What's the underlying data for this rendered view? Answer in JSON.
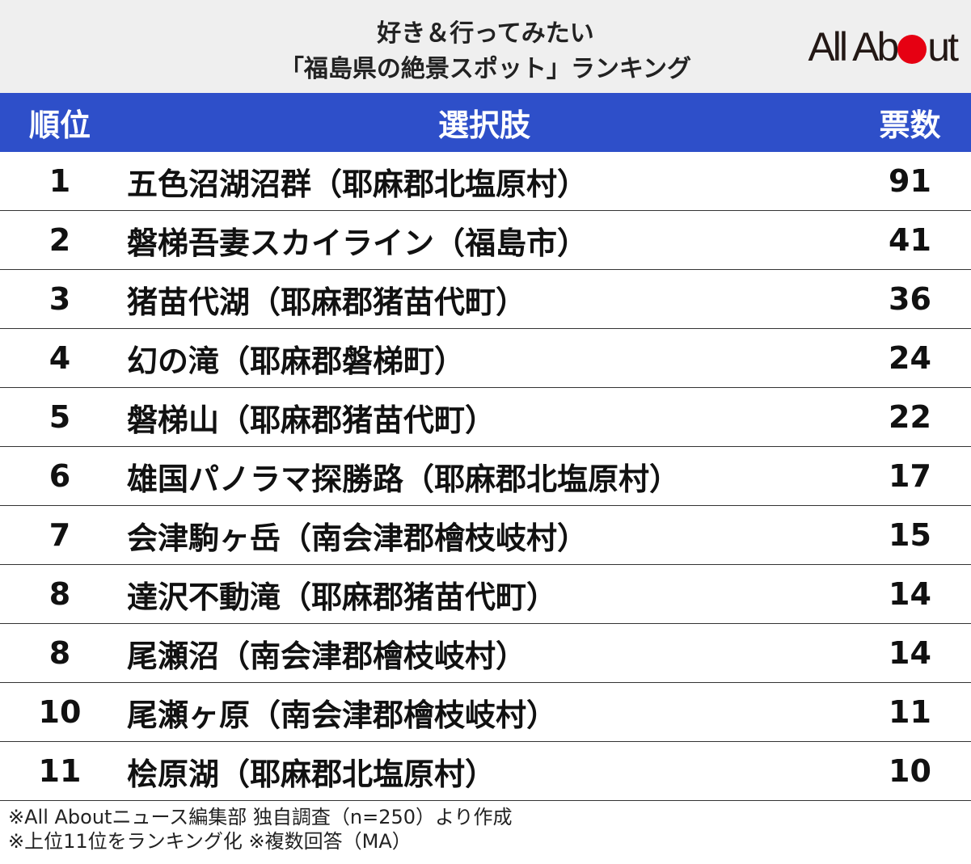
{
  "title": {
    "line1": "好き＆行ってみたい",
    "line2": "「福島県の絶景スポット」ランキング"
  },
  "logo": {
    "text_before": "All Ab",
    "text_after": "ut",
    "dot_color": "#e60012"
  },
  "header_color": "#2e4fc9",
  "chart_data": {
    "type": "table",
    "columns": [
      "順位",
      "選択肢",
      "票数"
    ],
    "rows": [
      {
        "rank": "1",
        "choice": "五色沼湖沼群（耶麻郡北塩原村）",
        "votes": 91
      },
      {
        "rank": "2",
        "choice": "磐梯吾妻スカイライン（福島市）",
        "votes": 41
      },
      {
        "rank": "3",
        "choice": "猪苗代湖（耶麻郡猪苗代町）",
        "votes": 36
      },
      {
        "rank": "4",
        "choice": "幻の滝（耶麻郡磐梯町）",
        "votes": 24
      },
      {
        "rank": "5",
        "choice": "磐梯山（耶麻郡猪苗代町）",
        "votes": 22
      },
      {
        "rank": "6",
        "choice": "雄国パノラマ探勝路（耶麻郡北塩原村）",
        "votes": 17
      },
      {
        "rank": "7",
        "choice": "会津駒ヶ岳（南会津郡檜枝岐村）",
        "votes": 15
      },
      {
        "rank": "8",
        "choice": "達沢不動滝（耶麻郡猪苗代町）",
        "votes": 14
      },
      {
        "rank": "8",
        "choice": "尾瀬沼（南会津郡檜枝岐村）",
        "votes": 14
      },
      {
        "rank": "10",
        "choice": "尾瀬ヶ原（南会津郡檜枝岐村）",
        "votes": 11
      },
      {
        "rank": "11",
        "choice": "桧原湖（耶麻郡北塩原村）",
        "votes": 10
      }
    ]
  },
  "notes": [
    "※All Aboutニュース編集部 独自調査（n=250）より作成",
    "※上位11位をランキング化 ※複数回答（MA）"
  ]
}
